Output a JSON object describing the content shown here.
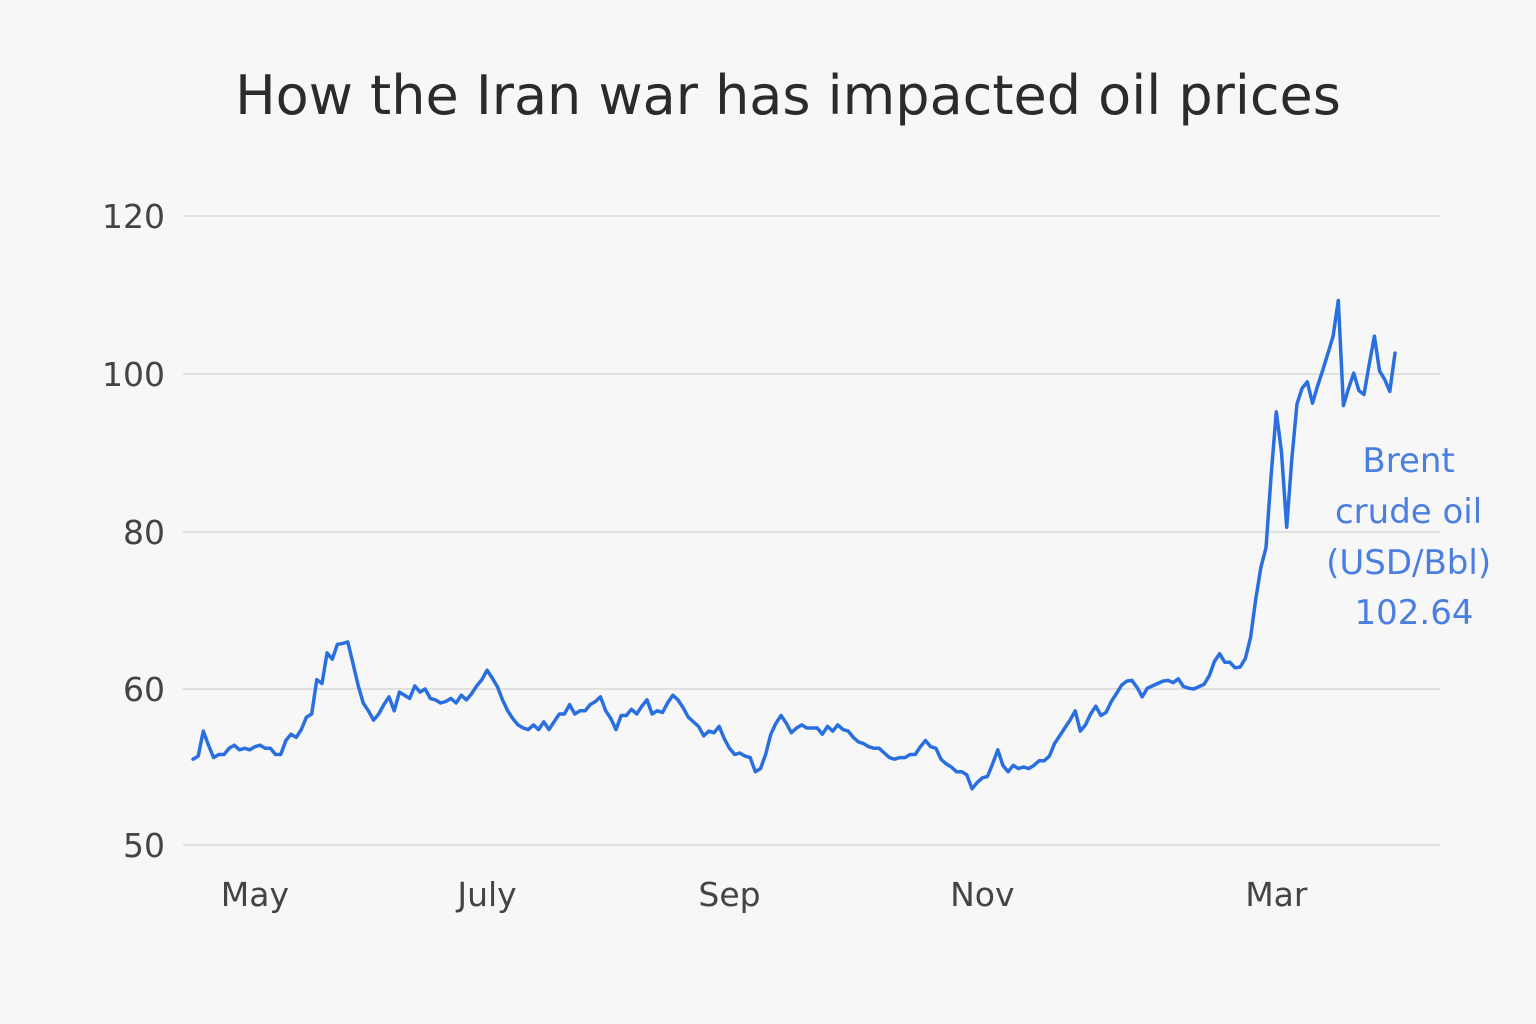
{
  "chart_data": {
    "type": "line",
    "title": "How the Iran war has impacted oil prices",
    "xlabel": "",
    "ylabel": "",
    "ylim": [
      50,
      120
    ],
    "y_ticks": [
      50,
      60,
      80,
      100,
      120
    ],
    "y_tick_labels": [
      "50",
      "60",
      "80",
      "100",
      "120"
    ],
    "grid": true,
    "legend": "none",
    "x_ticks": [
      {
        "label": "May",
        "index": 12
      },
      {
        "label": "July",
        "index": 57
      },
      {
        "label": "Sep",
        "index": 104
      },
      {
        "label": "Nov",
        "index": 153
      },
      {
        "label": "Mar",
        "index": 210
      }
    ],
    "series": [
      {
        "color": "#2a6fe0",
        "values": [
          55.5,
          55.7,
          57.3,
          56.4,
          55.6,
          55.8,
          55.8,
          56.2,
          56.4,
          56.1,
          56.2,
          56.1,
          56.3,
          56.4,
          56.2,
          56.2,
          55.8,
          55.8,
          56.7,
          57.1,
          56.9,
          57.4,
          58.2,
          58.4,
          61.2,
          60.7,
          64.6,
          63.8,
          65.7,
          65.8,
          66.0,
          63.3,
          60.5,
          59.1,
          58.6,
          58.0,
          58.4,
          59.0,
          59.5,
          58.6,
          59.8,
          59.6,
          59.4,
          60.4,
          59.8,
          60.0,
          59.4,
          59.3,
          59.1,
          59.2,
          59.4,
          59.1,
          59.6,
          59.3,
          59.7,
          60.4,
          61.2,
          62.4,
          61.4,
          60.3,
          59.3,
          58.6,
          58.1,
          57.7,
          57.5,
          57.4,
          57.7,
          57.4,
          57.9,
          57.4,
          57.9,
          58.4,
          58.4,
          59.0,
          58.4,
          58.6,
          58.6,
          59.0,
          59.2,
          59.5,
          58.6,
          58.1,
          57.4,
          58.3,
          58.3,
          58.7,
          58.4,
          58.9,
          59.3,
          58.4,
          58.6,
          58.5,
          59.1,
          59.6,
          59.3,
          58.8,
          58.2,
          57.9,
          57.6,
          57.0,
          57.3,
          57.2,
          57.6,
          56.8,
          56.2,
          55.8,
          55.9,
          55.7,
          55.6,
          54.7,
          54.9,
          55.8,
          57.1,
          57.8,
          58.3,
          57.8,
          57.2,
          57.5,
          57.7,
          57.5,
          57.5,
          57.5,
          57.1,
          57.6,
          57.3,
          57.7,
          57.4,
          57.3,
          56.9,
          56.6,
          56.5,
          56.3,
          56.2,
          56.2,
          55.9,
          55.6,
          55.5,
          55.6,
          55.6,
          55.8,
          55.8,
          56.3,
          56.7,
          56.3,
          56.2,
          55.5,
          55.2,
          55.0,
          54.7,
          54.7,
          54.5,
          53.6,
          54.0,
          54.3,
          54.4,
          55.2,
          56.1,
          55.1,
          54.7,
          55.1,
          54.9,
          55.0,
          54.9,
          55.1,
          55.4,
          55.4,
          55.7,
          56.5,
          57.0,
          57.5,
          58.0,
          58.6,
          57.3,
          57.7,
          58.4,
          58.9,
          58.3,
          58.5,
          59.2,
          59.7,
          60.5,
          61.0,
          61.1,
          60.2,
          59.5,
          60.1,
          60.4,
          60.7,
          61.0,
          61.1,
          60.8,
          61.3,
          60.3,
          60.1,
          60.0,
          60.3,
          60.6,
          61.7,
          63.5,
          64.5,
          63.4,
          63.4,
          62.7,
          62.8,
          63.9,
          66.6,
          71.4,
          75.5,
          78.0,
          87.3,
          95.2,
          90.1,
          80.6,
          89.2,
          96.2,
          98.2,
          99.0,
          96.3,
          98.5,
          100.5,
          102.6,
          104.8,
          109.3,
          96.0,
          98.2,
          100.1,
          97.9,
          97.4,
          101.2,
          104.8,
          100.4,
          99.3,
          97.8,
          102.64
        ]
      }
    ],
    "annotation": {
      "lines": [
        "Brent",
        "crude oil",
        "(USD/Bbl)",
        "102.64"
      ],
      "color": "#4a7fe0"
    }
  }
}
